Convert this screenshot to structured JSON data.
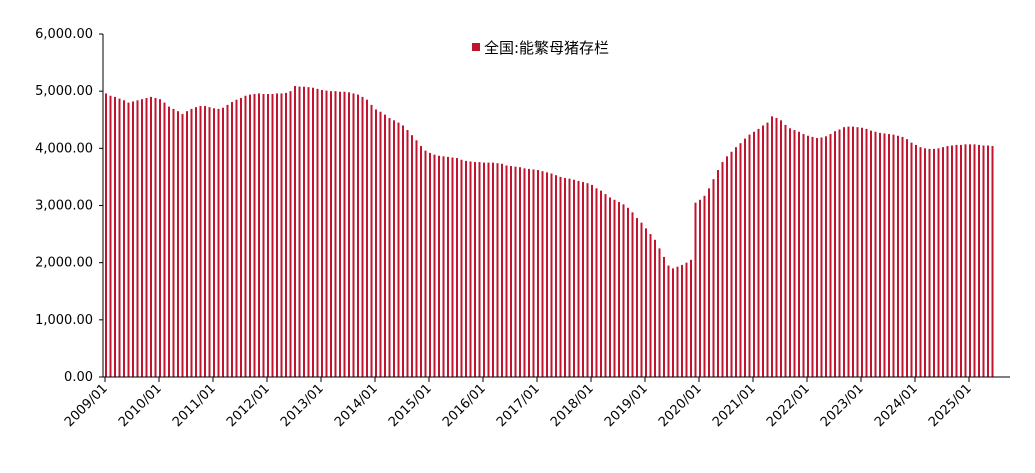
{
  "chart_data": {
    "type": "bar",
    "title": "",
    "xlabel": "",
    "ylabel": "",
    "legend_position": "top-center",
    "grid": false,
    "ylim": [
      0,
      6000
    ],
    "yticks": [
      "0.00",
      "1,000.00",
      "2,000.00",
      "3,000.00",
      "4,000.00",
      "5,000.00",
      "6,000.00"
    ],
    "ytick_values": [
      0,
      1000,
      2000,
      3000,
      4000,
      5000,
      6000
    ],
    "xticks": [
      "2009/01",
      "2010/01",
      "2011/01",
      "2012/01",
      "2013/01",
      "2014/01",
      "2015/01",
      "2016/01",
      "2017/01",
      "2018/01",
      "2019/01",
      "2020/01",
      "2021/01",
      "2022/01",
      "2023/01",
      "2024/01",
      "2025/01"
    ],
    "start_month": "2009/01",
    "end_month": "2025/06",
    "bar_color": "#c0152f",
    "series": [
      {
        "name": "全国:能繁母猪存栏",
        "values": [
          4960,
          4920,
          4900,
          4870,
          4840,
          4800,
          4820,
          4840,
          4860,
          4880,
          4900,
          4880,
          4860,
          4800,
          4730,
          4690,
          4650,
          4600,
          4650,
          4690,
          4720,
          4740,
          4740,
          4720,
          4700,
          4690,
          4710,
          4760,
          4810,
          4850,
          4880,
          4920,
          4940,
          4950,
          4960,
          4950,
          4950,
          4950,
          4960,
          4960,
          4970,
          5000,
          5090,
          5080,
          5078,
          5070,
          5060,
          5040,
          5020,
          5010,
          5000,
          5000,
          4990,
          4990,
          4980,
          4960,
          4940,
          4900,
          4850,
          4760,
          4680,
          4640,
          4590,
          4530,
          4490,
          4450,
          4400,
          4320,
          4230,
          4140,
          4040,
          3960,
          3920,
          3890,
          3870,
          3860,
          3850,
          3840,
          3830,
          3800,
          3780,
          3770,
          3760,
          3760,
          3750,
          3750,
          3750,
          3740,
          3730,
          3700,
          3690,
          3680,
          3670,
          3650,
          3640,
          3630,
          3620,
          3600,
          3580,
          3560,
          3530,
          3500,
          3480,
          3470,
          3450,
          3430,
          3410,
          3390,
          3360,
          3300,
          3260,
          3200,
          3140,
          3100,
          3060,
          3020,
          2960,
          2880,
          2780,
          2700,
          2600,
          2500,
          2400,
          2250,
          2100,
          1950,
          1900,
          1930,
          1960,
          2000,
          2050,
          3050,
          3100,
          3170,
          3300,
          3460,
          3620,
          3760,
          3860,
          3940,
          4020,
          4090,
          4170,
          4240,
          4290,
          4340,
          4400,
          4450,
          4560,
          4530,
          4490,
          4410,
          4350,
          4320,
          4290,
          4250,
          4220,
          4200,
          4180,
          4190,
          4210,
          4250,
          4300,
          4330,
          4370,
          4380,
          4380,
          4370,
          4360,
          4340,
          4310,
          4290,
          4270,
          4260,
          4250,
          4240,
          4220,
          4200,
          4160,
          4100,
          4060,
          4020,
          4000,
          3990,
          3990,
          4000,
          4020,
          4040,
          4050,
          4060,
          4060,
          4070,
          4070,
          4070,
          4060,
          4050,
          4050,
          4040
        ]
      }
    ]
  }
}
